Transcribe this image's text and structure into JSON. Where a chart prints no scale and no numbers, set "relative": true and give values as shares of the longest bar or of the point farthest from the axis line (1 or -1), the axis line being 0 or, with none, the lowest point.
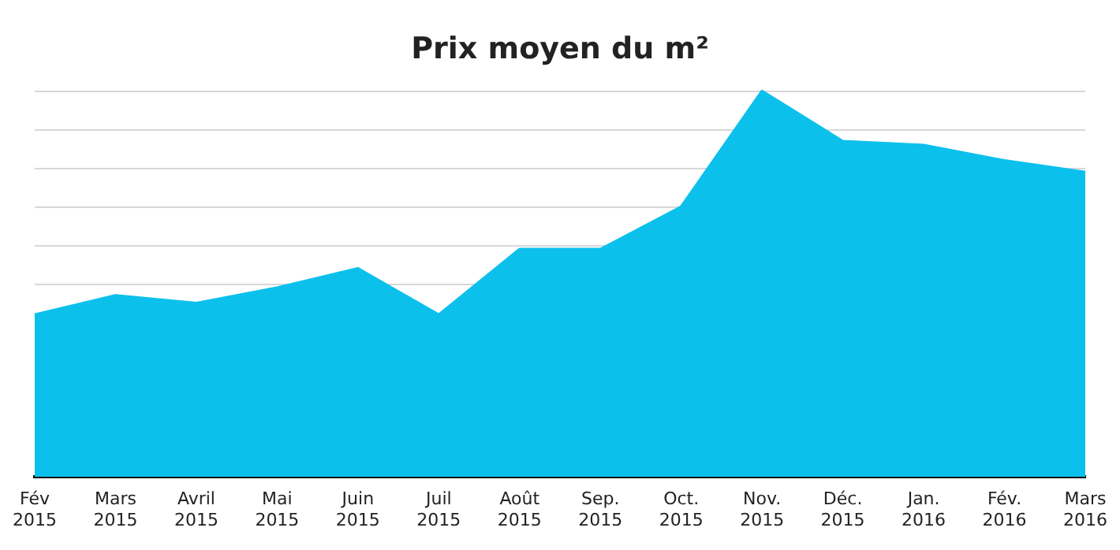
{
  "chart_data": {
    "type": "area",
    "title": "Prix moyen du m²",
    "categories": [
      "Fév 2015",
      "Mars 2015",
      "Avril 2015",
      "Mai 2015",
      "Juin 2015",
      "Juil 2015",
      "Août 2015",
      "Sep. 2015",
      "Oct. 2015",
      "Nov. 2015",
      "Déc. 2015",
      "Jan. 2016",
      "Fév. 2016",
      "Mars 2016"
    ],
    "series": [
      {
        "color": "#0cc0ec",
        "values": [
          0.42,
          0.47,
          0.45,
          0.49,
          0.54,
          0.42,
          0.59,
          0.59,
          0.7,
          1,
          0.87,
          0.86,
          0.82,
          0.79
        ]
      }
    ],
    "relative": true,
    "grid": "y",
    "legend": false
  }
}
